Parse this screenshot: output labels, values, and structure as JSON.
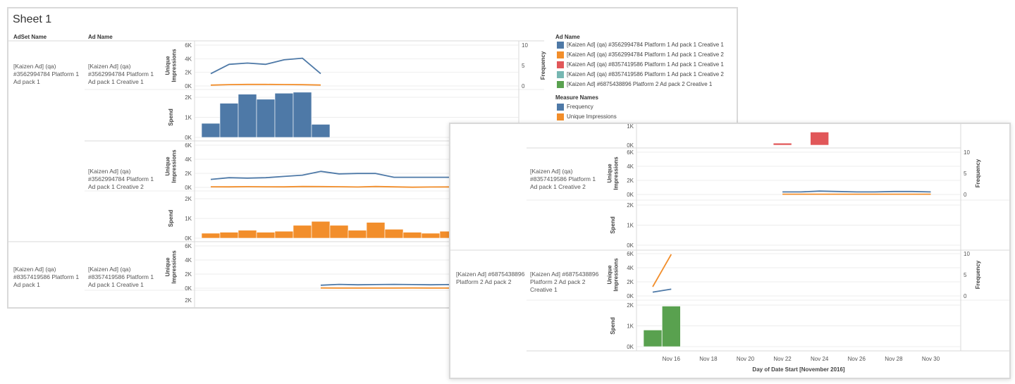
{
  "colors": {
    "blue": "#4e79a7",
    "orange": "#f28e2b",
    "red": "#e15759",
    "teal": "#76b7b2",
    "green": "#59a14f",
    "grid": "#e6e6e6",
    "border": "#d9d9d9"
  },
  "back": {
    "title": "Sheet 1",
    "headers": {
      "adset": "AdSet Name",
      "ad": "Ad Name"
    },
    "legend": {
      "ad_title": "Ad Name",
      "ad_items": [
        {
          "label": "[Kaizen Ad] (qa) #3562994784 Platform 1 Ad pack 1 Creative 1",
          "color": "#4e79a7"
        },
        {
          "label": "[Kaizen Ad] (qa) #3562994784 Platform 1 Ad pack 1 Creative 2",
          "color": "#f28e2b"
        },
        {
          "label": "[Kaizen Ad] (qa) #8357419586 Platform 1 Ad pack 1 Creative 1",
          "color": "#e15759"
        },
        {
          "label": "[Kaizen Ad] (qa) #8357419586 Platform 1 Ad pack 1 Creative 2",
          "color": "#76b7b2"
        },
        {
          "label": "[Kaizen Ad] #6875438896 Platform 2 Ad pack 2 Creative 1",
          "color": "#59a14f"
        }
      ],
      "measure_title": "Measure Names",
      "measure_items": [
        {
          "label": "Frequency",
          "color": "#4e79a7"
        },
        {
          "label": "Unique Impressions",
          "color": "#f28e2b"
        }
      ]
    },
    "adsets": [
      "[Kaizen Ad] (qa)\n#3562994784 Platform 1\nAd pack 1",
      "[Kaizen Ad] (qa)\n#8357419586 Platform 1\nAd pack 1"
    ],
    "ads": [
      "[Kaizen Ad] (qa)\n#3562994784 Platform 1\nAd pack 1 Creative 1",
      "[Kaizen Ad] (qa)\n#3562994784 Platform 1\nAd pack 1 Creative 2",
      "[Kaizen Ad] (qa)\n#8357419586 Platform 1\nAd pack 1 Creative 1"
    ]
  },
  "front": {
    "ads": [
      "[Kaizen Ad] (qa)\n#8357419586 Platform 1\nAd pack 1 Creative 2",
      "[Kaizen Ad] #6875438896\nPlatform 2 Ad pack 2\nCreative 1"
    ],
    "adsets": [
      "[Kaizen Ad] #6875438896\nPlatform 2 Ad pack 2"
    ]
  },
  "chart_data": {
    "type": "line+bar",
    "x_dates": [
      "Nov 15",
      "Nov 16",
      "Nov 17",
      "Nov 18",
      "Nov 19",
      "Nov 20",
      "Nov 21",
      "Nov 22",
      "Nov 23",
      "Nov 24",
      "Nov 25",
      "Nov 26",
      "Nov 27",
      "Nov 28",
      "Nov 29",
      "Nov 30"
    ],
    "x_ticks": [
      "Nov 16",
      "Nov 18",
      "Nov 20",
      "Nov 22",
      "Nov 24",
      "Nov 26",
      "Nov 28",
      "Nov 30"
    ],
    "xlabel": "Day of Date Start [November 2016]",
    "axes": {
      "impressions": {
        "label": "Unique\nImpressions",
        "ticks": [
          "0K",
          "2K",
          "4K",
          "6K"
        ],
        "ylim": [
          0,
          6000
        ]
      },
      "frequency": {
        "label": "Frequency",
        "ticks": [
          "0",
          "5",
          "10"
        ],
        "ylim": [
          0,
          10
        ]
      },
      "spend": {
        "label": "Spend",
        "ticks": [
          "0K",
          "1K",
          "2K"
        ],
        "ylim": [
          0,
          2000
        ]
      }
    },
    "panels": {
      "creative_3562994784_1": {
        "frequency": [
          3,
          5.3,
          5.6,
          5.3,
          6.4,
          6.8,
          3,
          null,
          null,
          null,
          null,
          null,
          null,
          null,
          null,
          null
        ],
        "impressions": [
          120,
          200,
          230,
          230,
          210,
          190,
          130,
          null,
          null,
          null,
          null,
          null,
          null,
          null,
          null,
          null
        ],
        "spend": [
          700,
          1700,
          2150,
          1900,
          2200,
          2250,
          650,
          0,
          0,
          0,
          0,
          0,
          0,
          0,
          0,
          0
        ]
      },
      "creative_3562994784_2": {
        "frequency": [
          1.9,
          2.3,
          2.2,
          2.3,
          2.6,
          2.9,
          3.8,
          3.2,
          3.3,
          3.3,
          2.4,
          2.4,
          2.4,
          2.4,
          2.4,
          2.4
        ],
        "impressions": [
          90,
          80,
          110,
          90,
          80,
          130,
          120,
          100,
          60,
          130,
          80,
          30,
          60,
          70,
          80,
          90
        ],
        "spend": [
          250,
          300,
          400,
          300,
          350,
          650,
          850,
          650,
          400,
          800,
          450,
          300,
          250,
          350,
          300,
          300
        ]
      },
      "creative_8357419586_1": {
        "frequency": [
          null,
          null,
          null,
          null,
          null,
          null,
          0.7,
          0.9,
          0.8,
          0.85,
          0.9,
          0.85,
          0.8,
          0.85,
          0.85,
          0.8
        ],
        "impressions": [
          null,
          null,
          null,
          null,
          null,
          null,
          30,
          20,
          20,
          20,
          20,
          30,
          20,
          20,
          30,
          20
        ],
        "spend_visible": [
          null,
          null,
          null,
          null,
          null,
          null,
          null,
          100,
          null,
          650,
          null,
          null,
          null,
          null,
          null,
          null
        ]
      },
      "creative_8357419586_2": {
        "frequency": [
          null,
          null,
          null,
          null,
          null,
          null,
          null,
          0.6,
          0.6,
          0.8,
          0.7,
          0.6,
          0.6,
          0.7,
          0.7,
          0.6
        ],
        "impressions": [
          null,
          null,
          null,
          null,
          null,
          null,
          null,
          40,
          40,
          40,
          40,
          40,
          40,
          40,
          40,
          40
        ],
        "spend": [
          null,
          null,
          null,
          null,
          null,
          null,
          null,
          null,
          null,
          null,
          null,
          null,
          null,
          null,
          null,
          null
        ]
      },
      "creative_6875438896_1": {
        "frequency": [
          0.9,
          1.6,
          null,
          null,
          null,
          null,
          null,
          null,
          null,
          null,
          null,
          null,
          null,
          null,
          null,
          null
        ],
        "impressions": [
          1300,
          5900,
          null,
          null,
          null,
          null,
          null,
          null,
          null,
          null,
          null,
          null,
          null,
          null,
          null,
          null
        ],
        "spend": [
          800,
          1950,
          null,
          null,
          null,
          null,
          null,
          null,
          null,
          null,
          null,
          null,
          null,
          null,
          null,
          null
        ]
      }
    }
  }
}
